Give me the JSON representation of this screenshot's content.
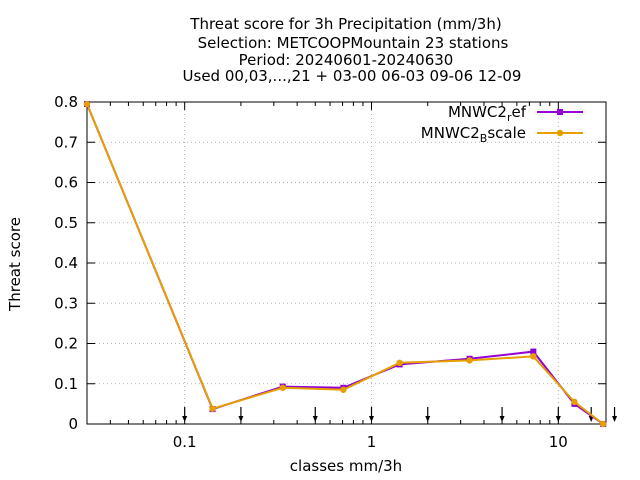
{
  "chart_data": {
    "type": "line",
    "title_lines": [
      "Threat score  for 3h Precipitation (mm/3h)",
      "Selection: METCOOPMountain     23 stations",
      "Period: 20240601-20240630",
      "Used 00,03,...,21 + 03-00 06-03 09-06 12-09"
    ],
    "xlabel": "classes mm/3h",
    "ylabel": "Threat score",
    "x_scale": "log",
    "xlim": [
      0.03,
      18
    ],
    "ylim": [
      0,
      0.8
    ],
    "x_ticks": [
      {
        "value": 0.1,
        "label": "0.1"
      },
      {
        "value": 1,
        "label": "1"
      },
      {
        "value": 10,
        "label": "10"
      }
    ],
    "y_ticks": [
      {
        "value": 0,
        "label": "0"
      },
      {
        "value": 0.1,
        "label": "0.1"
      },
      {
        "value": 0.2,
        "label": "0.2"
      },
      {
        "value": 0.3,
        "label": "0.3"
      },
      {
        "value": 0.4,
        "label": "0.4"
      },
      {
        "value": 0.5,
        "label": "0.5"
      },
      {
        "value": 0.6,
        "label": "0.6"
      },
      {
        "value": 0.7,
        "label": "0.7"
      },
      {
        "value": 0.8,
        "label": "0.8"
      }
    ],
    "grid": true,
    "threshold_arrows": [
      0.1,
      0.2,
      0.5,
      1,
      2,
      5,
      10,
      15,
      20
    ],
    "legend_position": "top-right",
    "series": [
      {
        "name": "MNWC2_ref",
        "legend_main": "MNWC2",
        "legend_sub": "r",
        "legend_tail": "ef",
        "color": "#9400d3",
        "x": [
          0.03,
          0.141,
          0.335,
          0.707,
          1.414,
          3.35,
          7.35,
          12.2,
          17.4
        ],
        "y": [
          0.795,
          0.037,
          0.093,
          0.09,
          0.148,
          0.162,
          0.18,
          0.05,
          0.0
        ]
      },
      {
        "name": "MNWC2_Bscale",
        "legend_main": "MNWC2",
        "legend_sub": "B",
        "legend_tail": "scale",
        "color": "#e69f00",
        "x": [
          0.03,
          0.141,
          0.335,
          0.707,
          1.414,
          3.35,
          7.35,
          12.2,
          17.4
        ],
        "y": [
          0.795,
          0.038,
          0.09,
          0.085,
          0.152,
          0.158,
          0.168,
          0.055,
          0.0
        ]
      }
    ]
  }
}
